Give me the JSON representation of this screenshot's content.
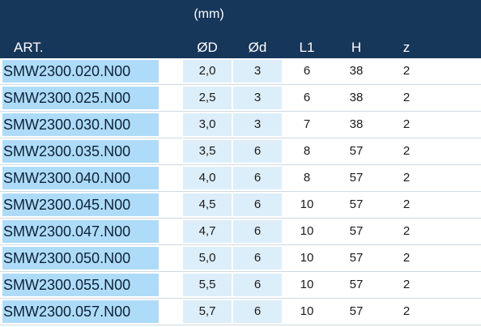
{
  "header": {
    "unit": "(mm)",
    "columns": [
      "ART.",
      "ØD",
      "Ød",
      "L1",
      "H",
      "z"
    ]
  },
  "rows": [
    {
      "art": "SMW2300.020.N00",
      "D": "2,0",
      "d": "3",
      "L1": "6",
      "H": "38",
      "z": "2"
    },
    {
      "art": "SMW2300.025.N00",
      "D": "2,5",
      "d": "3",
      "L1": "6",
      "H": "38",
      "z": "2"
    },
    {
      "art": "SMW2300.030.N00",
      "D": "3,0",
      "d": "3",
      "L1": "7",
      "H": "38",
      "z": "2"
    },
    {
      "art": "SMW2300.035.N00",
      "D": "3,5",
      "d": "6",
      "L1": "8",
      "H": "57",
      "z": "2"
    },
    {
      "art": "SMW2300.040.N00",
      "D": "4,0",
      "d": "6",
      "L1": "8",
      "H": "57",
      "z": "2"
    },
    {
      "art": "SMW2300.045.N00",
      "D": "4,5",
      "d": "6",
      "L1": "10",
      "H": "57",
      "z": "2"
    },
    {
      "art": "SMW2300.047.N00",
      "D": "4,7",
      "d": "6",
      "L1": "10",
      "H": "57",
      "z": "2"
    },
    {
      "art": "SMW2300.050.N00",
      "D": "5,0",
      "d": "6",
      "L1": "10",
      "H": "57",
      "z": "2"
    },
    {
      "art": "SMW2300.055.N00",
      "D": "5,5",
      "d": "6",
      "L1": "10",
      "H": "57",
      "z": "2"
    },
    {
      "art": "SMW2300.057.N00",
      "D": "5,7",
      "d": "6",
      "L1": "10",
      "H": "57",
      "z": "2"
    }
  ]
}
